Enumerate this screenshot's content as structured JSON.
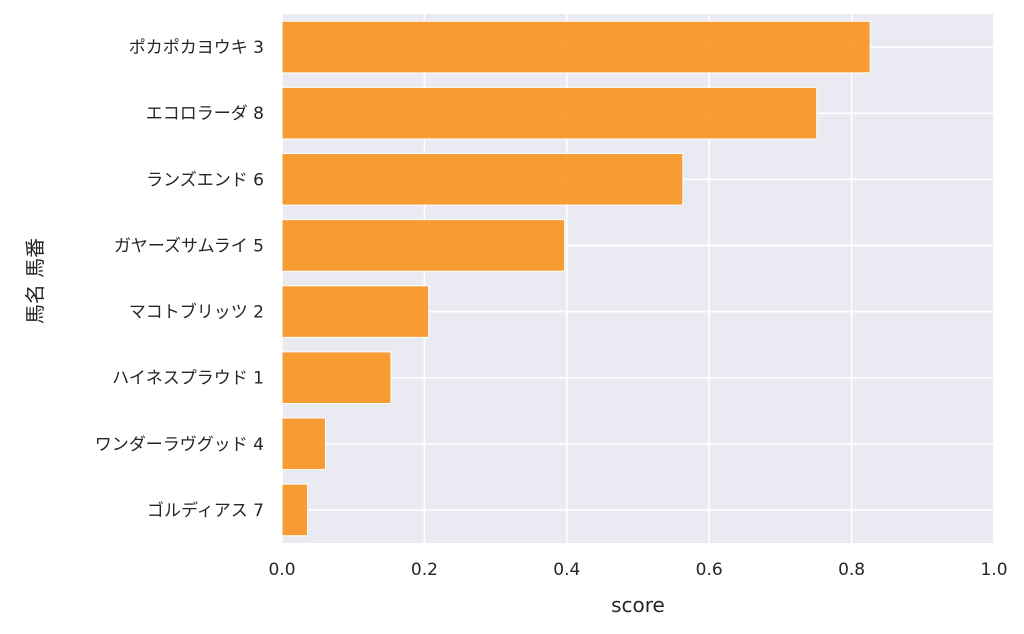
{
  "chart_data": {
    "type": "bar",
    "orientation": "horizontal",
    "categories": [
      "ポカポカヨウキ 3",
      "エコロラーダ 8",
      "ランズエンド 6",
      "ガヤーズサムライ 5",
      "マコトブリッツ 2",
      "ハイネスプラウド 1",
      "ワンダーラヴグッド 4",
      "ゴルディアス 7"
    ],
    "values": [
      0.826,
      0.751,
      0.563,
      0.397,
      0.206,
      0.153,
      0.061,
      0.036
    ],
    "xlabel": "score",
    "ylabel": "馬名 馬番",
    "xlim": [
      0.0,
      1.0
    ],
    "xticks": [
      "0.0",
      "0.2",
      "0.4",
      "0.6",
      "0.8",
      "1.0"
    ],
    "grid": true,
    "bar_color": "#f7931e",
    "plot_background": "#eaeaf2"
  }
}
